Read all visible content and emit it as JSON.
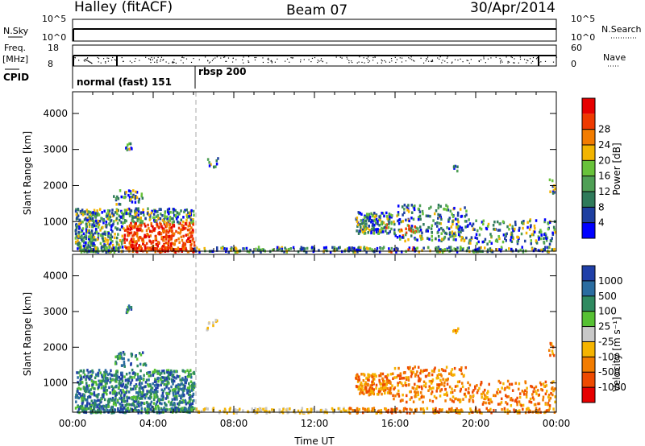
{
  "header": {
    "station": "Halley (fitACF)",
    "beam": "Beam 07",
    "date": "30/Apr/2014"
  },
  "status_strip": {
    "nsky_label": "N.Sky",
    "nsky_ticks": [
      "10^5",
      "10^0"
    ],
    "nsearch_label": "N.Search",
    "nsearch_ticks": [
      "10^5",
      "10^0"
    ],
    "freq_label": "Freq.",
    "freq_unit": "[MHz]",
    "freq_ticks": [
      "18",
      "8"
    ],
    "nave_label": "Nave",
    "nave_ticks": [
      "60",
      "0"
    ],
    "cpid_label": "CPID",
    "cpid_segments": [
      {
        "label": "normal (fast) 151",
        "start_hour": 0,
        "end_hour": 6
      },
      {
        "label": "rbsp 200",
        "start_hour": 6,
        "end_hour": 24
      }
    ]
  },
  "chart_data": [
    {
      "type": "heatmap",
      "quantity": "Power",
      "ylabel": "Slant Range [km]",
      "xlabel": "",
      "xlim": [
        0,
        24
      ],
      "ylim": [
        180,
        4600
      ],
      "yticks": [
        "1000",
        "2000",
        "3000",
        "4000"
      ],
      "ytick_values": [
        1000,
        2000,
        3000,
        4000
      ],
      "colorbar": {
        "label": "Power [dB]",
        "ticks": [
          "4",
          "8",
          "12",
          "16",
          "20",
          "24",
          "28"
        ],
        "tick_values": [
          4,
          8,
          12,
          16,
          20,
          24,
          28
        ],
        "range": [
          0,
          32
        ],
        "colors": [
          "#0000ff",
          "#1e3fa0",
          "#2f7a5a",
          "#4f9f55",
          "#68c23a",
          "#f2b400",
          "#f27c00",
          "#ee3a00",
          "#e60000"
        ]
      },
      "cpid_boundary_hour": 6
    },
    {
      "type": "heatmap",
      "quantity": "Velocity",
      "ylabel": "Slant Range [km]",
      "xlabel": "Time UT",
      "xlim": [
        0,
        24
      ],
      "ylim": [
        180,
        4600
      ],
      "yticks": [
        "1000",
        "2000",
        "3000",
        "4000"
      ],
      "ytick_values": [
        1000,
        2000,
        3000,
        4000
      ],
      "xticks": [
        "00:00",
        "04:00",
        "08:00",
        "12:00",
        "16:00",
        "20:00",
        "00:00"
      ],
      "xtick_values": [
        0,
        4,
        8,
        12,
        16,
        20,
        24
      ],
      "colorbar": {
        "label": "Velocity [m s⁻¹]",
        "ticks": [
          "1000",
          "500",
          "100",
          "25",
          "-25",
          "-100",
          "-500",
          "-1000"
        ],
        "colors": [
          "#1f3fa8",
          "#2a6ca0",
          "#2f8a60",
          "#56c033",
          "#c8c8c8",
          "#f5b400",
          "#f27c00",
          "#ee4a00",
          "#e60000"
        ]
      },
      "cpid_boundary_hour": 6
    }
  ]
}
